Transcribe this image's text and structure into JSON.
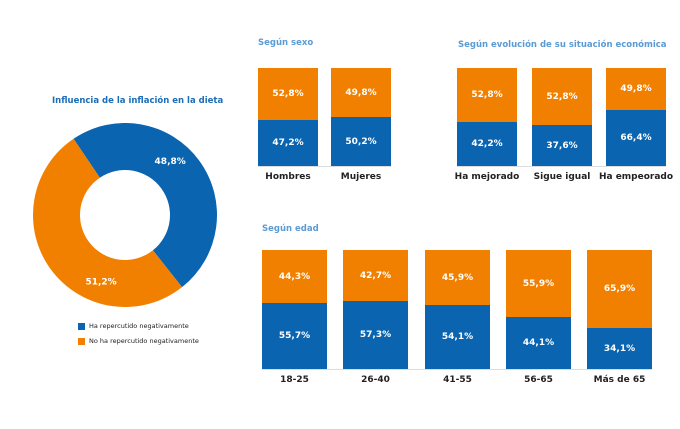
{
  "colors": {
    "blue": "#0a64b0",
    "orange": "#f28000",
    "title": "#1d6db7"
  },
  "chart_data": [
    {
      "type": "pie",
      "donut": true,
      "title": "Influencia de la inflación en la dieta",
      "slices": [
        {
          "name": "Ha repercutido negativamente",
          "value": 48.8,
          "label": "48,8%"
        },
        {
          "name": "No ha repercutido negativamente",
          "value": 51.2,
          "label": "51,2%"
        }
      ],
      "legend": "bottom"
    },
    {
      "type": "bar",
      "stacked": true,
      "title": "Según sexo",
      "categories": [
        "Hombres",
        "Mujeres"
      ],
      "series": [
        {
          "name": "Ha repercutido negativamente",
          "values": [
            47.2,
            50.2
          ],
          "labels": [
            "47,2%",
            "50,2%"
          ]
        },
        {
          "name": "No ha repercutido negativamente",
          "values": [
            52.8,
            49.8
          ],
          "labels": [
            "52,8%",
            "49,8%"
          ]
        }
      ]
    },
    {
      "type": "bar",
      "stacked": true,
      "title": "Según evolución de su situación económica",
      "categories": [
        "Ha mejorado",
        "Sigue igual",
        "Ha empeorado"
      ],
      "series": [
        {
          "name": "Ha repercutido negativamente",
          "values": [
            42.2,
            37.6,
            66.4
          ],
          "labels": [
            "42,2%",
            "37,6%",
            "66,4%"
          ]
        },
        {
          "name": "No ha repercutido negativamente",
          "values": [
            52.8,
            52.8,
            49.8
          ],
          "labels": [
            "52,8%",
            "52,8%",
            "49,8%"
          ]
        }
      ]
    },
    {
      "type": "bar",
      "stacked": true,
      "title": "Según edad",
      "categories": [
        "18-25",
        "26-40",
        "41-55",
        "56-65",
        "Más de 65"
      ],
      "series": [
        {
          "name": "Ha repercutido negativamente",
          "values": [
            55.7,
            57.3,
            54.1,
            44.1,
            34.1
          ],
          "labels": [
            "55,7%",
            "57,3%",
            "54,1%",
            "44,1%",
            "34,1%"
          ]
        },
        {
          "name": "No ha repercutido negativamente",
          "values": [
            44.3,
            42.7,
            45.9,
            55.9,
            65.9
          ],
          "labels": [
            "44,3%",
            "42,7%",
            "45,9%",
            "55,9%",
            "65,9%"
          ]
        }
      ]
    }
  ]
}
